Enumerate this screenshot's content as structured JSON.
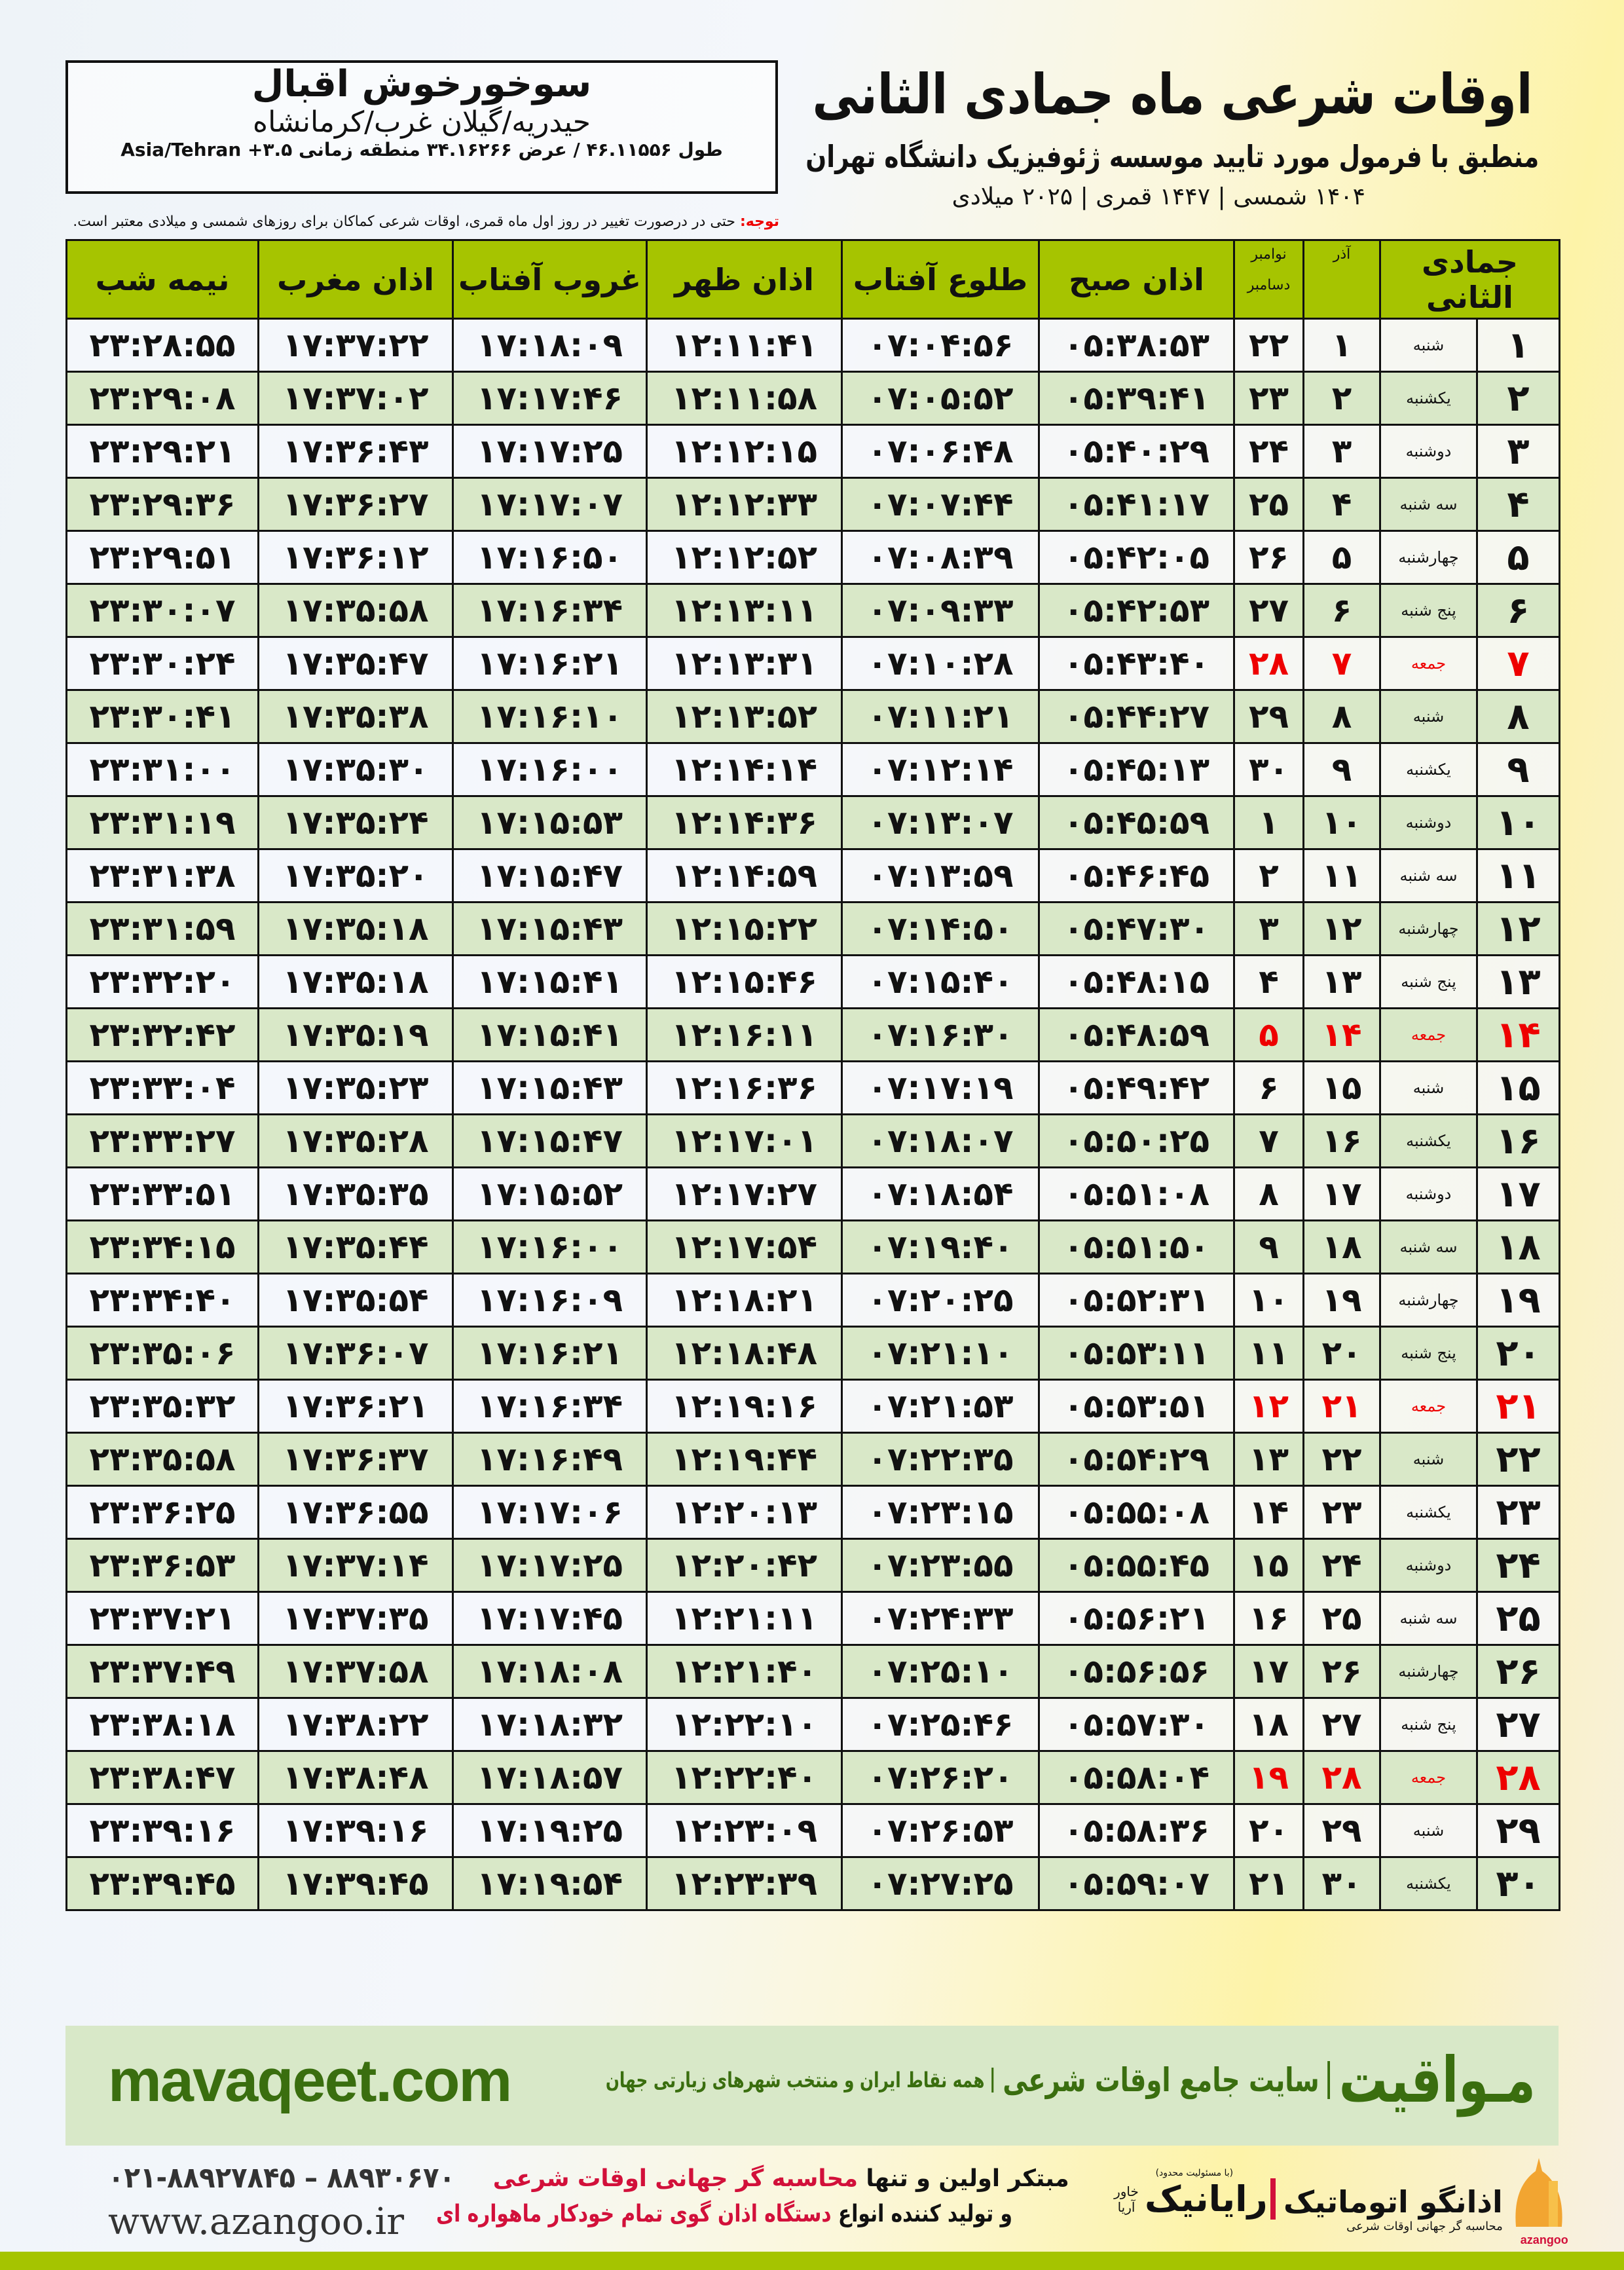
{
  "header": {
    "title": "اوقات شرعی ماه جمادی الثانی",
    "subtitle": "منطبق با فرمول مورد تایید موسسه ژئوفیزیک دانشگاه تهران",
    "dateline": "۱۴۰۴ شمسی | ۱۴۴۷ قمری | ۲۰۲۵ میلادی"
  },
  "location": {
    "name": "سوخورخوش اقبال",
    "region": "حیدریه/گیلان غرب/کرمانشاه",
    "coords": "طول ۴۶.۱۱۵۵۶ / عرض ۳۴.۱۶۲۶۶ منطقه زمانی ۳.۵+ Asia/Tehran"
  },
  "note": {
    "label": "توجه:",
    "text": " حتی در درصورت تغییر در روز اول ماه قمری، اوقات شرعی کماکان برای روزهای شمسی و میلادی معتبر است."
  },
  "table": {
    "headers": {
      "month": "جمادی الثانی",
      "azar": "آذر",
      "gregorian_top": "نوامبر",
      "gregorian_bottom": "دسامبر",
      "fajr": "اذان صبح",
      "sunrise": "طلوع آفتاب",
      "dhuhr": "اذان ظهر",
      "sunset": "غروب آفتاب",
      "maghrib": "اذان مغرب",
      "midnight": "نیمه شب"
    },
    "friday_color": "#e00000",
    "header_color": "#a6c400",
    "even_row_color": "#d9e8c8",
    "rows": [
      {
        "day": "۱",
        "weekday": "شنبه",
        "azar": "۱",
        "gregorian": "۲۲",
        "fajr": "۰۵:۳۸:۵۳",
        "sunrise": "۰۷:۰۴:۵۶",
        "dhuhr": "۱۲:۱۱:۴۱",
        "sunset": "۱۷:۱۸:۰۹",
        "maghrib": "۱۷:۳۷:۲۲",
        "midnight": "۲۳:۲۸:۵۵",
        "friday": false
      },
      {
        "day": "۲",
        "weekday": "یکشنبه",
        "azar": "۲",
        "gregorian": "۲۳",
        "fajr": "۰۵:۳۹:۴۱",
        "sunrise": "۰۷:۰۵:۵۲",
        "dhuhr": "۱۲:۱۱:۵۸",
        "sunset": "۱۷:۱۷:۴۶",
        "maghrib": "۱۷:۳۷:۰۲",
        "midnight": "۲۳:۲۹:۰۸",
        "friday": false
      },
      {
        "day": "۳",
        "weekday": "دوشنبه",
        "azar": "۳",
        "gregorian": "۲۴",
        "fajr": "۰۵:۴۰:۲۹",
        "sunrise": "۰۷:۰۶:۴۸",
        "dhuhr": "۱۲:۱۲:۱۵",
        "sunset": "۱۷:۱۷:۲۵",
        "maghrib": "۱۷:۳۶:۴۳",
        "midnight": "۲۳:۲۹:۲۱",
        "friday": false
      },
      {
        "day": "۴",
        "weekday": "سه شنبه",
        "azar": "۴",
        "gregorian": "۲۵",
        "fajr": "۰۵:۴۱:۱۷",
        "sunrise": "۰۷:۰۷:۴۴",
        "dhuhr": "۱۲:۱۲:۳۳",
        "sunset": "۱۷:۱۷:۰۷",
        "maghrib": "۱۷:۳۶:۲۷",
        "midnight": "۲۳:۲۹:۳۶",
        "friday": false
      },
      {
        "day": "۵",
        "weekday": "چهارشنبه",
        "azar": "۵",
        "gregorian": "۲۶",
        "fajr": "۰۵:۴۲:۰۵",
        "sunrise": "۰۷:۰۸:۳۹",
        "dhuhr": "۱۲:۱۲:۵۲",
        "sunset": "۱۷:۱۶:۵۰",
        "maghrib": "۱۷:۳۶:۱۲",
        "midnight": "۲۳:۲۹:۵۱",
        "friday": false
      },
      {
        "day": "۶",
        "weekday": "پنج شنبه",
        "azar": "۶",
        "gregorian": "۲۷",
        "fajr": "۰۵:۴۲:۵۳",
        "sunrise": "۰۷:۰۹:۳۳",
        "dhuhr": "۱۲:۱۳:۱۱",
        "sunset": "۱۷:۱۶:۳۴",
        "maghrib": "۱۷:۳۵:۵۸",
        "midnight": "۲۳:۳۰:۰۷",
        "friday": false
      },
      {
        "day": "۷",
        "weekday": "جمعه",
        "azar": "۷",
        "gregorian": "۲۸",
        "fajr": "۰۵:۴۳:۴۰",
        "sunrise": "۰۷:۱۰:۲۸",
        "dhuhr": "۱۲:۱۳:۳۱",
        "sunset": "۱۷:۱۶:۲۱",
        "maghrib": "۱۷:۳۵:۴۷",
        "midnight": "۲۳:۳۰:۲۴",
        "friday": true
      },
      {
        "day": "۸",
        "weekday": "شنبه",
        "azar": "۸",
        "gregorian": "۲۹",
        "fajr": "۰۵:۴۴:۲۷",
        "sunrise": "۰۷:۱۱:۲۱",
        "dhuhr": "۱۲:۱۳:۵۲",
        "sunset": "۱۷:۱۶:۱۰",
        "maghrib": "۱۷:۳۵:۳۸",
        "midnight": "۲۳:۳۰:۴۱",
        "friday": false
      },
      {
        "day": "۹",
        "weekday": "یکشنبه",
        "azar": "۹",
        "gregorian": "۳۰",
        "fajr": "۰۵:۴۵:۱۳",
        "sunrise": "۰۷:۱۲:۱۴",
        "dhuhr": "۱۲:۱۴:۱۴",
        "sunset": "۱۷:۱۶:۰۰",
        "maghrib": "۱۷:۳۵:۳۰",
        "midnight": "۲۳:۳۱:۰۰",
        "friday": false
      },
      {
        "day": "۱۰",
        "weekday": "دوشنبه",
        "azar": "۱۰",
        "gregorian": "۱",
        "fajr": "۰۵:۴۵:۵۹",
        "sunrise": "۰۷:۱۳:۰۷",
        "dhuhr": "۱۲:۱۴:۳۶",
        "sunset": "۱۷:۱۵:۵۳",
        "maghrib": "۱۷:۳۵:۲۴",
        "midnight": "۲۳:۳۱:۱۹",
        "friday": false
      },
      {
        "day": "۱۱",
        "weekday": "سه شنبه",
        "azar": "۱۱",
        "gregorian": "۲",
        "fajr": "۰۵:۴۶:۴۵",
        "sunrise": "۰۷:۱۳:۵۹",
        "dhuhr": "۱۲:۱۴:۵۹",
        "sunset": "۱۷:۱۵:۴۷",
        "maghrib": "۱۷:۳۵:۲۰",
        "midnight": "۲۳:۳۱:۳۸",
        "friday": false
      },
      {
        "day": "۱۲",
        "weekday": "چهارشنبه",
        "azar": "۱۲",
        "gregorian": "۳",
        "fajr": "۰۵:۴۷:۳۰",
        "sunrise": "۰۷:۱۴:۵۰",
        "dhuhr": "۱۲:۱۵:۲۲",
        "sunset": "۱۷:۱۵:۴۳",
        "maghrib": "۱۷:۳۵:۱۸",
        "midnight": "۲۳:۳۱:۵۹",
        "friday": false
      },
      {
        "day": "۱۳",
        "weekday": "پنج شنبه",
        "azar": "۱۳",
        "gregorian": "۴",
        "fajr": "۰۵:۴۸:۱۵",
        "sunrise": "۰۷:۱۵:۴۰",
        "dhuhr": "۱۲:۱۵:۴۶",
        "sunset": "۱۷:۱۵:۴۱",
        "maghrib": "۱۷:۳۵:۱۸",
        "midnight": "۲۳:۳۲:۲۰",
        "friday": false
      },
      {
        "day": "۱۴",
        "weekday": "جمعه",
        "azar": "۱۴",
        "gregorian": "۵",
        "fajr": "۰۵:۴۸:۵۹",
        "sunrise": "۰۷:۱۶:۳۰",
        "dhuhr": "۱۲:۱۶:۱۱",
        "sunset": "۱۷:۱۵:۴۱",
        "maghrib": "۱۷:۳۵:۱۹",
        "midnight": "۲۳:۳۲:۴۲",
        "friday": true
      },
      {
        "day": "۱۵",
        "weekday": "شنبه",
        "azar": "۱۵",
        "gregorian": "۶",
        "fajr": "۰۵:۴۹:۴۲",
        "sunrise": "۰۷:۱۷:۱۹",
        "dhuhr": "۱۲:۱۶:۳۶",
        "sunset": "۱۷:۱۵:۴۳",
        "maghrib": "۱۷:۳۵:۲۳",
        "midnight": "۲۳:۳۳:۰۴",
        "friday": false
      },
      {
        "day": "۱۶",
        "weekday": "یکشنبه",
        "azar": "۱۶",
        "gregorian": "۷",
        "fajr": "۰۵:۵۰:۲۵",
        "sunrise": "۰۷:۱۸:۰۷",
        "dhuhr": "۱۲:۱۷:۰۱",
        "sunset": "۱۷:۱۵:۴۷",
        "maghrib": "۱۷:۳۵:۲۸",
        "midnight": "۲۳:۳۳:۲۷",
        "friday": false
      },
      {
        "day": "۱۷",
        "weekday": "دوشنبه",
        "azar": "۱۷",
        "gregorian": "۸",
        "fajr": "۰۵:۵۱:۰۸",
        "sunrise": "۰۷:۱۸:۵۴",
        "dhuhr": "۱۲:۱۷:۲۷",
        "sunset": "۱۷:۱۵:۵۲",
        "maghrib": "۱۷:۳۵:۳۵",
        "midnight": "۲۳:۳۳:۵۱",
        "friday": false
      },
      {
        "day": "۱۸",
        "weekday": "سه شنبه",
        "azar": "۱۸",
        "gregorian": "۹",
        "fajr": "۰۵:۵۱:۵۰",
        "sunrise": "۰۷:۱۹:۴۰",
        "dhuhr": "۱۲:۱۷:۵۴",
        "sunset": "۱۷:۱۶:۰۰",
        "maghrib": "۱۷:۳۵:۴۴",
        "midnight": "۲۳:۳۴:۱۵",
        "friday": false
      },
      {
        "day": "۱۹",
        "weekday": "چهارشنبه",
        "azar": "۱۹",
        "gregorian": "۱۰",
        "fajr": "۰۵:۵۲:۳۱",
        "sunrise": "۰۷:۲۰:۲۵",
        "dhuhr": "۱۲:۱۸:۲۱",
        "sunset": "۱۷:۱۶:۰۹",
        "maghrib": "۱۷:۳۵:۵۴",
        "midnight": "۲۳:۳۴:۴۰",
        "friday": false
      },
      {
        "day": "۲۰",
        "weekday": "پنج شنبه",
        "azar": "۲۰",
        "gregorian": "۱۱",
        "fajr": "۰۵:۵۳:۱۱",
        "sunrise": "۰۷:۲۱:۱۰",
        "dhuhr": "۱۲:۱۸:۴۸",
        "sunset": "۱۷:۱۶:۲۱",
        "maghrib": "۱۷:۳۶:۰۷",
        "midnight": "۲۳:۳۵:۰۶",
        "friday": false
      },
      {
        "day": "۲۱",
        "weekday": "جمعه",
        "azar": "۲۱",
        "gregorian": "۱۲",
        "fajr": "۰۵:۵۳:۵۱",
        "sunrise": "۰۷:۲۱:۵۳",
        "dhuhr": "۱۲:۱۹:۱۶",
        "sunset": "۱۷:۱۶:۳۴",
        "maghrib": "۱۷:۳۶:۲۱",
        "midnight": "۲۳:۳۵:۳۲",
        "friday": true
      },
      {
        "day": "۲۲",
        "weekday": "شنبه",
        "azar": "۲۲",
        "gregorian": "۱۳",
        "fajr": "۰۵:۵۴:۲۹",
        "sunrise": "۰۷:۲۲:۳۵",
        "dhuhr": "۱۲:۱۹:۴۴",
        "sunset": "۱۷:۱۶:۴۹",
        "maghrib": "۱۷:۳۶:۳۷",
        "midnight": "۲۳:۳۵:۵۸",
        "friday": false
      },
      {
        "day": "۲۳",
        "weekday": "یکشنبه",
        "azar": "۲۳",
        "gregorian": "۱۴",
        "fajr": "۰۵:۵۵:۰۸",
        "sunrise": "۰۷:۲۳:۱۵",
        "dhuhr": "۱۲:۲۰:۱۳",
        "sunset": "۱۷:۱۷:۰۶",
        "maghrib": "۱۷:۳۶:۵۵",
        "midnight": "۲۳:۳۶:۲۵",
        "friday": false
      },
      {
        "day": "۲۴",
        "weekday": "دوشنبه",
        "azar": "۲۴",
        "gregorian": "۱۵",
        "fajr": "۰۵:۵۵:۴۵",
        "sunrise": "۰۷:۲۳:۵۵",
        "dhuhr": "۱۲:۲۰:۴۲",
        "sunset": "۱۷:۱۷:۲۵",
        "maghrib": "۱۷:۳۷:۱۴",
        "midnight": "۲۳:۳۶:۵۳",
        "friday": false
      },
      {
        "day": "۲۵",
        "weekday": "سه شنبه",
        "azar": "۲۵",
        "gregorian": "۱۶",
        "fajr": "۰۵:۵۶:۲۱",
        "sunrise": "۰۷:۲۴:۳۳",
        "dhuhr": "۱۲:۲۱:۱۱",
        "sunset": "۱۷:۱۷:۴۵",
        "maghrib": "۱۷:۳۷:۳۵",
        "midnight": "۲۳:۳۷:۲۱",
        "friday": false
      },
      {
        "day": "۲۶",
        "weekday": "چهارشنبه",
        "azar": "۲۶",
        "gregorian": "۱۷",
        "fajr": "۰۵:۵۶:۵۶",
        "sunrise": "۰۷:۲۵:۱۰",
        "dhuhr": "۱۲:۲۱:۴۰",
        "sunset": "۱۷:۱۸:۰۸",
        "maghrib": "۱۷:۳۷:۵۸",
        "midnight": "۲۳:۳۷:۴۹",
        "friday": false
      },
      {
        "day": "۲۷",
        "weekday": "پنج شنبه",
        "azar": "۲۷",
        "gregorian": "۱۸",
        "fajr": "۰۵:۵۷:۳۰",
        "sunrise": "۰۷:۲۵:۴۶",
        "dhuhr": "۱۲:۲۲:۱۰",
        "sunset": "۱۷:۱۸:۳۲",
        "maghrib": "۱۷:۳۸:۲۲",
        "midnight": "۲۳:۳۸:۱۸",
        "friday": false
      },
      {
        "day": "۲۸",
        "weekday": "جمعه",
        "azar": "۲۸",
        "gregorian": "۱۹",
        "fajr": "۰۵:۵۸:۰۴",
        "sunrise": "۰۷:۲۶:۲۰",
        "dhuhr": "۱۲:۲۲:۴۰",
        "sunset": "۱۷:۱۸:۵۷",
        "maghrib": "۱۷:۳۸:۴۸",
        "midnight": "۲۳:۳۸:۴۷",
        "friday": true
      },
      {
        "day": "۲۹",
        "weekday": "شنبه",
        "azar": "۲۹",
        "gregorian": "۲۰",
        "fajr": "۰۵:۵۸:۳۶",
        "sunrise": "۰۷:۲۶:۵۳",
        "dhuhr": "۱۲:۲۳:۰۹",
        "sunset": "۱۷:۱۹:۲۵",
        "maghrib": "۱۷:۳۹:۱۶",
        "midnight": "۲۳:۳۹:۱۶",
        "friday": false
      },
      {
        "day": "۳۰",
        "weekday": "یکشنبه",
        "azar": "۳۰",
        "gregorian": "۲۱",
        "fajr": "۰۵:۵۹:۰۷",
        "sunrise": "۰۷:۲۷:۲۵",
        "dhuhr": "۱۲:۲۳:۳۹",
        "sunset": "۱۷:۱۹:۵۴",
        "maghrib": "۱۷:۳۹:۴۵",
        "midnight": "۲۳:۳۹:۴۵",
        "friday": false
      }
    ]
  },
  "banner": {
    "brand": "مـواقیت",
    "tagline": "سایت جامع اوقات شرعی",
    "tagline2": "همه نقاط ایران و منتخب شهرهای زیارتی جهان",
    "url": "mavaqeet.com",
    "color": "#3a6e0f"
  },
  "footer": {
    "phone": "۰۲۱-۸۸۹۲۷۸۴۵ – ۸۸۹۳۰۶۷۰",
    "website": "www.azangoo.ir",
    "line1_a": "مبتکر اولین و تنها ",
    "line1_b": "محاسبه گر جهانی اوقات شرعی",
    "line2_a": "و تولید کننده انواع ",
    "line2_b": "دستگاه اذان گوی تمام خودکار ماهواره ای",
    "rayanik_name": "رایانیک",
    "rayanik_sub": "خاور آریا",
    "rayanik_note": "(با مسئولیت محدود)",
    "azangoo_name": "اذانگو اتوماتیک",
    "azangoo_sub": "محاسبه گر جهانی اوقات شرعی",
    "azangoo_latin": "azangoo",
    "accent_red": "#d2103a"
  }
}
